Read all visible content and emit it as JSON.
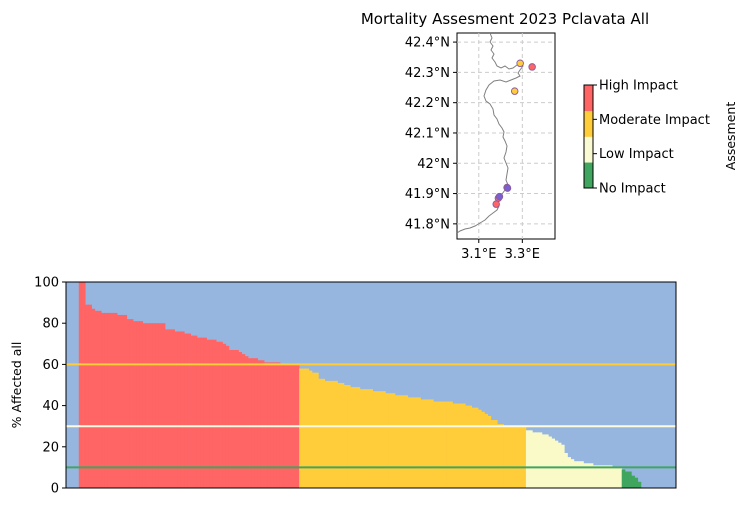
{
  "chart_data": [
    {
      "type": "map",
      "title": "Mortality Assesment 2023 Pclavata All",
      "lat_ticks": [
        "42.4°N",
        "42.3°N",
        "42.2°N",
        "42.1°N",
        "42°N",
        "41.9°N",
        "41.8°N"
      ],
      "lon_ticks": [
        "3.1°E",
        "3.3°E"
      ],
      "lat_range": [
        41.75,
        42.43
      ],
      "lon_range": [
        3.0,
        3.45
      ],
      "grid": true,
      "points": [
        {
          "lon": 3.345,
          "lat": 42.318,
          "category": "High Impact"
        },
        {
          "lon": 3.29,
          "lat": 42.33,
          "category": "Moderate Impact"
        },
        {
          "lon": 3.265,
          "lat": 42.238,
          "category": "Moderate Impact"
        },
        {
          "lon": 3.23,
          "lat": 41.92,
          "category": "Moderate Impact"
        },
        {
          "lon": 3.232,
          "lat": 41.918,
          "category": "No Impact"
        },
        {
          "lon": 3.19,
          "lat": 41.885,
          "category": "High Impact"
        },
        {
          "lon": 3.195,
          "lat": 41.89,
          "category": "No Impact"
        },
        {
          "lon": 3.18,
          "lat": 41.865,
          "category": "High Impact"
        }
      ],
      "colorbar": {
        "label": "Assesment",
        "ticks": [
          "No Impact",
          "Low Impact",
          "Moderate Impact",
          "High Impact"
        ],
        "colors": [
          "#3fa55f",
          "#fafad2",
          "#ffcc3a",
          "#ff6565"
        ]
      }
    },
    {
      "type": "bar",
      "ylabel": "% Affected all",
      "ylim": [
        0,
        100
      ],
      "yticks": [
        0,
        20,
        40,
        60,
        80,
        100
      ],
      "background_color": "#96b6e0",
      "thresholds": [
        {
          "value": 60,
          "color": "#ffcc3a"
        },
        {
          "value": 30,
          "color": "#fffbe0"
        },
        {
          "value": 10,
          "color": "#3fa55f"
        }
      ],
      "colors": {
        "high": "#ff6565",
        "moderate": "#ffcc3a",
        "low": "#fafac8",
        "none": "#3fa55f"
      },
      "series": [
        {
          "category": "high",
          "values": [
            0,
            0,
            0,
            0,
            100,
            100,
            89,
            89,
            87,
            86,
            86,
            85,
            85,
            85,
            85,
            85,
            84,
            84,
            84,
            82,
            82,
            81,
            81,
            81,
            80,
            80,
            80,
            80,
            80,
            80,
            80,
            77,
            77,
            77,
            76,
            76,
            76,
            75,
            75,
            74,
            74,
            73,
            73,
            73,
            72,
            72,
            72,
            71,
            71,
            70,
            69,
            67,
            67,
            67,
            66,
            65,
            64,
            63,
            63,
            63,
            62,
            62,
            61,
            61,
            61,
            61,
            61,
            60,
            60,
            60,
            60,
            60,
            60
          ]
        },
        {
          "category": "moderate",
          "values": [
            58,
            58,
            58,
            57,
            56,
            56,
            53,
            53,
            52,
            52,
            52,
            52,
            51,
            51,
            50,
            50,
            49,
            49,
            49,
            48,
            48,
            48,
            48,
            47,
            47,
            47,
            47,
            46,
            46,
            46,
            45,
            45,
            45,
            45,
            44,
            44,
            44,
            44,
            43,
            43,
            43,
            43,
            42,
            42,
            42,
            42,
            42,
            42,
            41,
            41,
            41,
            41,
            40,
            40,
            39,
            39,
            38,
            37,
            36,
            35,
            33,
            33,
            31,
            31,
            30,
            30,
            30,
            30,
            30,
            30,
            30
          ]
        },
        {
          "category": "low",
          "values": [
            28,
            28,
            27,
            27,
            27,
            26,
            26,
            25,
            24,
            23,
            22,
            21,
            17,
            15,
            14,
            13,
            13,
            13,
            12,
            12,
            12,
            11,
            11,
            11,
            11,
            11,
            11,
            10,
            10,
            10
          ]
        },
        {
          "category": "none",
          "values": [
            9,
            8,
            8,
            6,
            5,
            3,
            0,
            0,
            0,
            0,
            0,
            0,
            0,
            0,
            0,
            0,
            0
          ]
        }
      ]
    }
  ]
}
